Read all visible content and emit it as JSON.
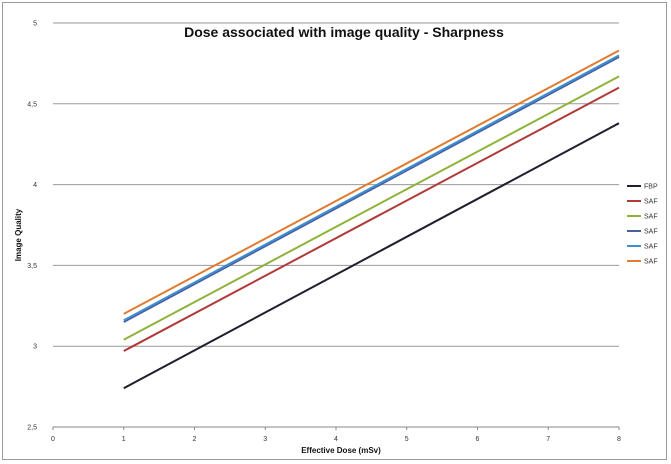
{
  "chart_data": {
    "type": "line",
    "title": "Dose associated with image quality - Sharpness",
    "xlabel": "Effective Dose (mSv)",
    "ylabel": "Image Quality",
    "xlim": [
      0,
      8
    ],
    "ylim": [
      2.5,
      5
    ],
    "x_ticks": [
      "0",
      "1",
      "2",
      "3",
      "4",
      "5",
      "6",
      "7",
      "8"
    ],
    "y_ticks": [
      "2,5",
      "3",
      "3,5",
      "4",
      "4,5",
      "5"
    ],
    "y_tick_values": [
      2.5,
      3,
      3.5,
      4,
      4.5,
      5
    ],
    "grid": "horizontal",
    "legend": "right",
    "series": [
      {
        "name": "FBP",
        "color": "#1f1f2e",
        "x": [
          1,
          8
        ],
        "values": [
          2.74,
          4.38
        ]
      },
      {
        "name": "SAF",
        "color": "#b03a3a",
        "x": [
          1,
          8
        ],
        "values": [
          2.97,
          4.6
        ]
      },
      {
        "name": "SAF",
        "color": "#8fb33a",
        "x": [
          1,
          8
        ],
        "values": [
          3.04,
          4.67
        ]
      },
      {
        "name": "SAF",
        "color": "#4a5fa3",
        "x": [
          1,
          8
        ],
        "values": [
          3.15,
          4.79
        ]
      },
      {
        "name": "SAF",
        "color": "#3e8fcf",
        "x": [
          1,
          8
        ],
        "values": [
          3.16,
          4.8
        ]
      },
      {
        "name": "SAF",
        "color": "#e07b30",
        "x": [
          1,
          8
        ],
        "values": [
          3.2,
          4.83
        ]
      }
    ]
  }
}
